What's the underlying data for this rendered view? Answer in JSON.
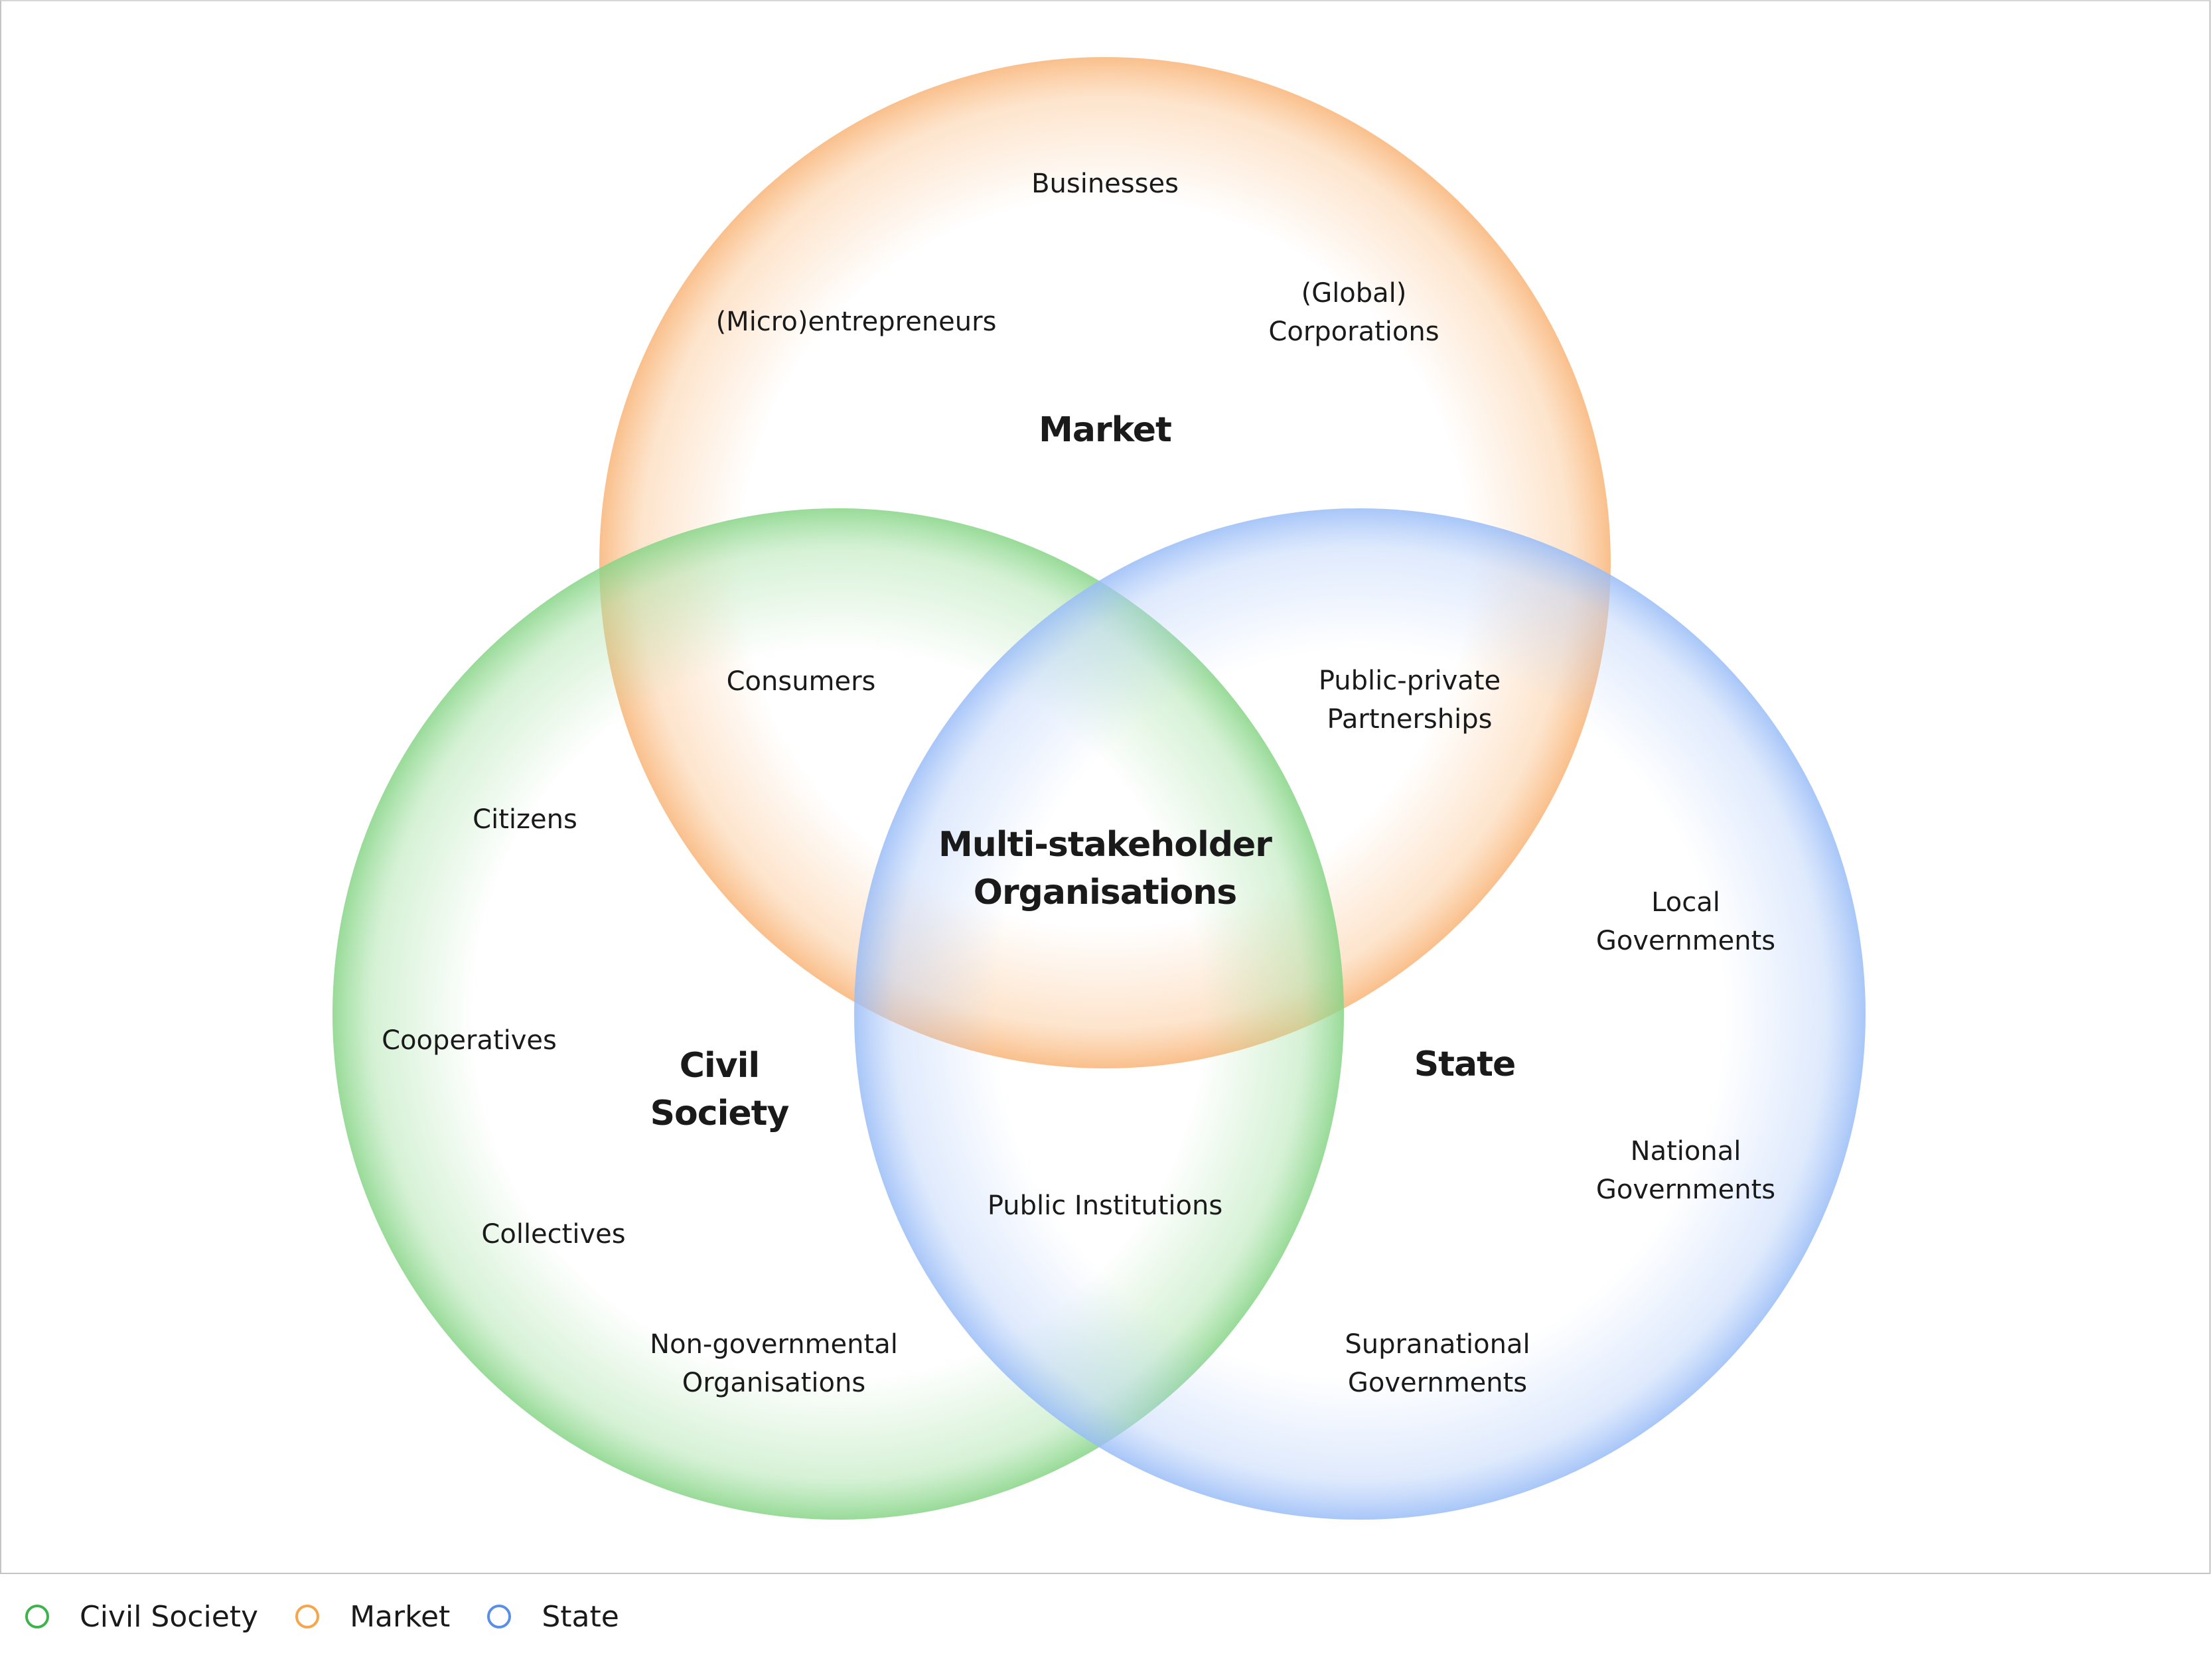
{
  "sets": {
    "market": {
      "title": "Market",
      "color": "#f8b470"
    },
    "civil": {
      "title": "Civil\nSociety",
      "color": "#7fd37f"
    },
    "state": {
      "title": "State",
      "color": "#8fb5f5"
    }
  },
  "labels": {
    "businesses": "Businesses",
    "microentrepreneurs": "(Micro)entrepreneurs",
    "global_corporations": "(Global)\nCorporations",
    "consumers": "Consumers",
    "public_private": "Public-private\nPartnerships",
    "citizens": "Citizens",
    "multi_stakeholder": "Multi-stakeholder\nOrganisations",
    "local_governments": "Local\nGovernments",
    "cooperatives": "Cooperatives",
    "national_governments": "National\nGovernments",
    "public_institutions": "Public Institutions",
    "collectives": "Collectives",
    "ngos": "Non-governmental\nOrganisations",
    "supranational": "Supranational\nGovernments"
  },
  "legend": [
    {
      "label": "Civil Society",
      "color": "#3cb44b"
    },
    {
      "label": "Market",
      "color": "#f5a54a"
    },
    {
      "label": "State",
      "color": "#5b8ee6"
    }
  ]
}
